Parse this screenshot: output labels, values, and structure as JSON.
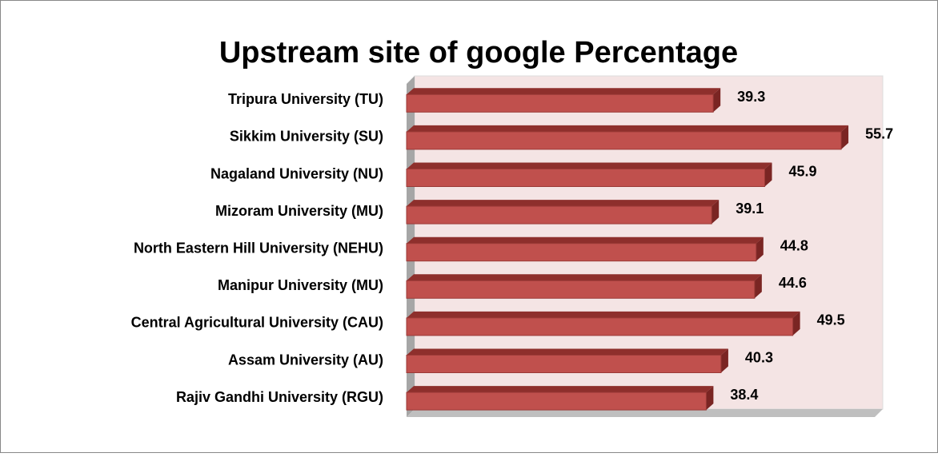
{
  "chart_data": {
    "type": "bar",
    "orientation": "horizontal",
    "title": "Upstream site of google Percentage",
    "categories": [
      "Tripura University (TU)",
      "Sikkim University (SU)",
      "Nagaland University (NU)",
      "Mizoram University (MU)",
      "North Eastern Hill University (NEHU)",
      "Manipur University (MU)",
      "Central Agricultural University (CAU)",
      "Assam University (AU)",
      "Rajiv Gandhi University  (RGU)"
    ],
    "values": [
      39.3,
      55.7,
      45.9,
      39.1,
      44.8,
      44.6,
      49.5,
      40.3,
      38.4
    ],
    "color": "#c0504d",
    "xlim": [
      0,
      60
    ]
  }
}
